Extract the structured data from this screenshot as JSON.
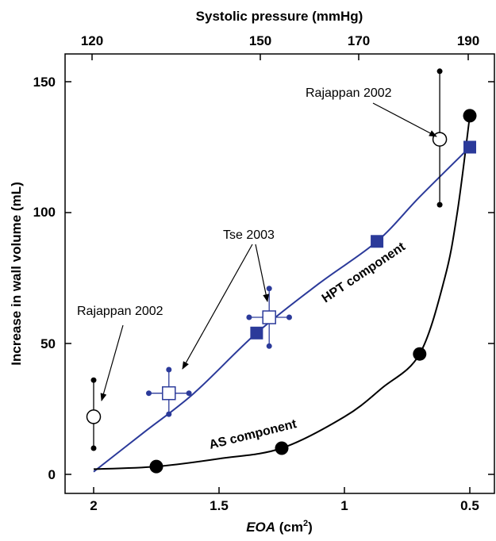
{
  "chart_data": {
    "type": "scatter",
    "top_axis": {
      "label": "Systolic pressure (mmHg)",
      "ticks": [
        "120",
        "150",
        "170",
        "190"
      ]
    },
    "x_axis": {
      "label_italic": "EOA",
      "label_unit": " (cm",
      "label_sup": "2",
      "label_close": ")",
      "ticks": [
        "2",
        "1.5",
        "1",
        "0.5"
      ],
      "range": [
        2.1,
        0.2
      ]
    },
    "y_axis": {
      "label": "Increase in wall volume (mL)",
      "ticks": [
        "0",
        "50",
        "100",
        "150"
      ],
      "range": [
        -5,
        160
      ]
    },
    "series": [
      {
        "name": "HPT component",
        "color": "#2b3a9a",
        "marker": "filled-square",
        "points": [
          [
            1.35,
            54
          ],
          [
            0.87,
            89
          ],
          [
            0.5,
            125
          ]
        ],
        "curve": [
          [
            2.0,
            1
          ],
          [
            1.8,
            16
          ],
          [
            1.6,
            31
          ],
          [
            1.35,
            54
          ],
          [
            1.1,
            73
          ],
          [
            0.87,
            89
          ],
          [
            0.7,
            106
          ],
          [
            0.5,
            125
          ]
        ]
      },
      {
        "name": "AS component",
        "color": "#000000",
        "marker": "filled-circle",
        "points": [
          [
            1.75,
            3
          ],
          [
            1.25,
            10
          ],
          [
            0.7,
            46
          ],
          [
            0.5,
            137
          ]
        ],
        "curve": [
          [
            2.0,
            2
          ],
          [
            1.75,
            3
          ],
          [
            1.5,
            6
          ],
          [
            1.25,
            10
          ],
          [
            1.0,
            22
          ],
          [
            0.85,
            33
          ],
          [
            0.7,
            46
          ],
          [
            0.6,
            75
          ],
          [
            0.55,
            100
          ],
          [
            0.5,
            137
          ]
        ]
      }
    ],
    "studies": [
      {
        "label": "Rajappan 2002",
        "x": 2.0,
        "y": 22,
        "ylow": 10,
        "yhigh": 36,
        "marker": "open-circle",
        "color": "#000000"
      },
      {
        "label": "Tse 2003",
        "x": 1.7,
        "y": 31,
        "ylow": 23,
        "yhigh": 40,
        "xlow": 1.78,
        "xhigh": 1.62,
        "marker": "open-square",
        "color": "#2b3a9a"
      },
      {
        "label": "Tse 2003",
        "x": 1.3,
        "y": 60,
        "ylow": 49,
        "yhigh": 71,
        "xlow": 1.38,
        "xhigh": 1.22,
        "marker": "open-square",
        "color": "#2b3a9a"
      },
      {
        "label": "Rajappan 2002",
        "x": 0.62,
        "y": 128,
        "ylow": 103,
        "yhigh": 154,
        "marker": "open-circle",
        "color": "#000000"
      }
    ],
    "annotations": {
      "rajappan_left": "Rajappan 2002",
      "rajappan_right": "Rajappan 2002",
      "tse": "Tse 2003",
      "hpt_label": "HPT component",
      "as_label": "AS component"
    }
  }
}
